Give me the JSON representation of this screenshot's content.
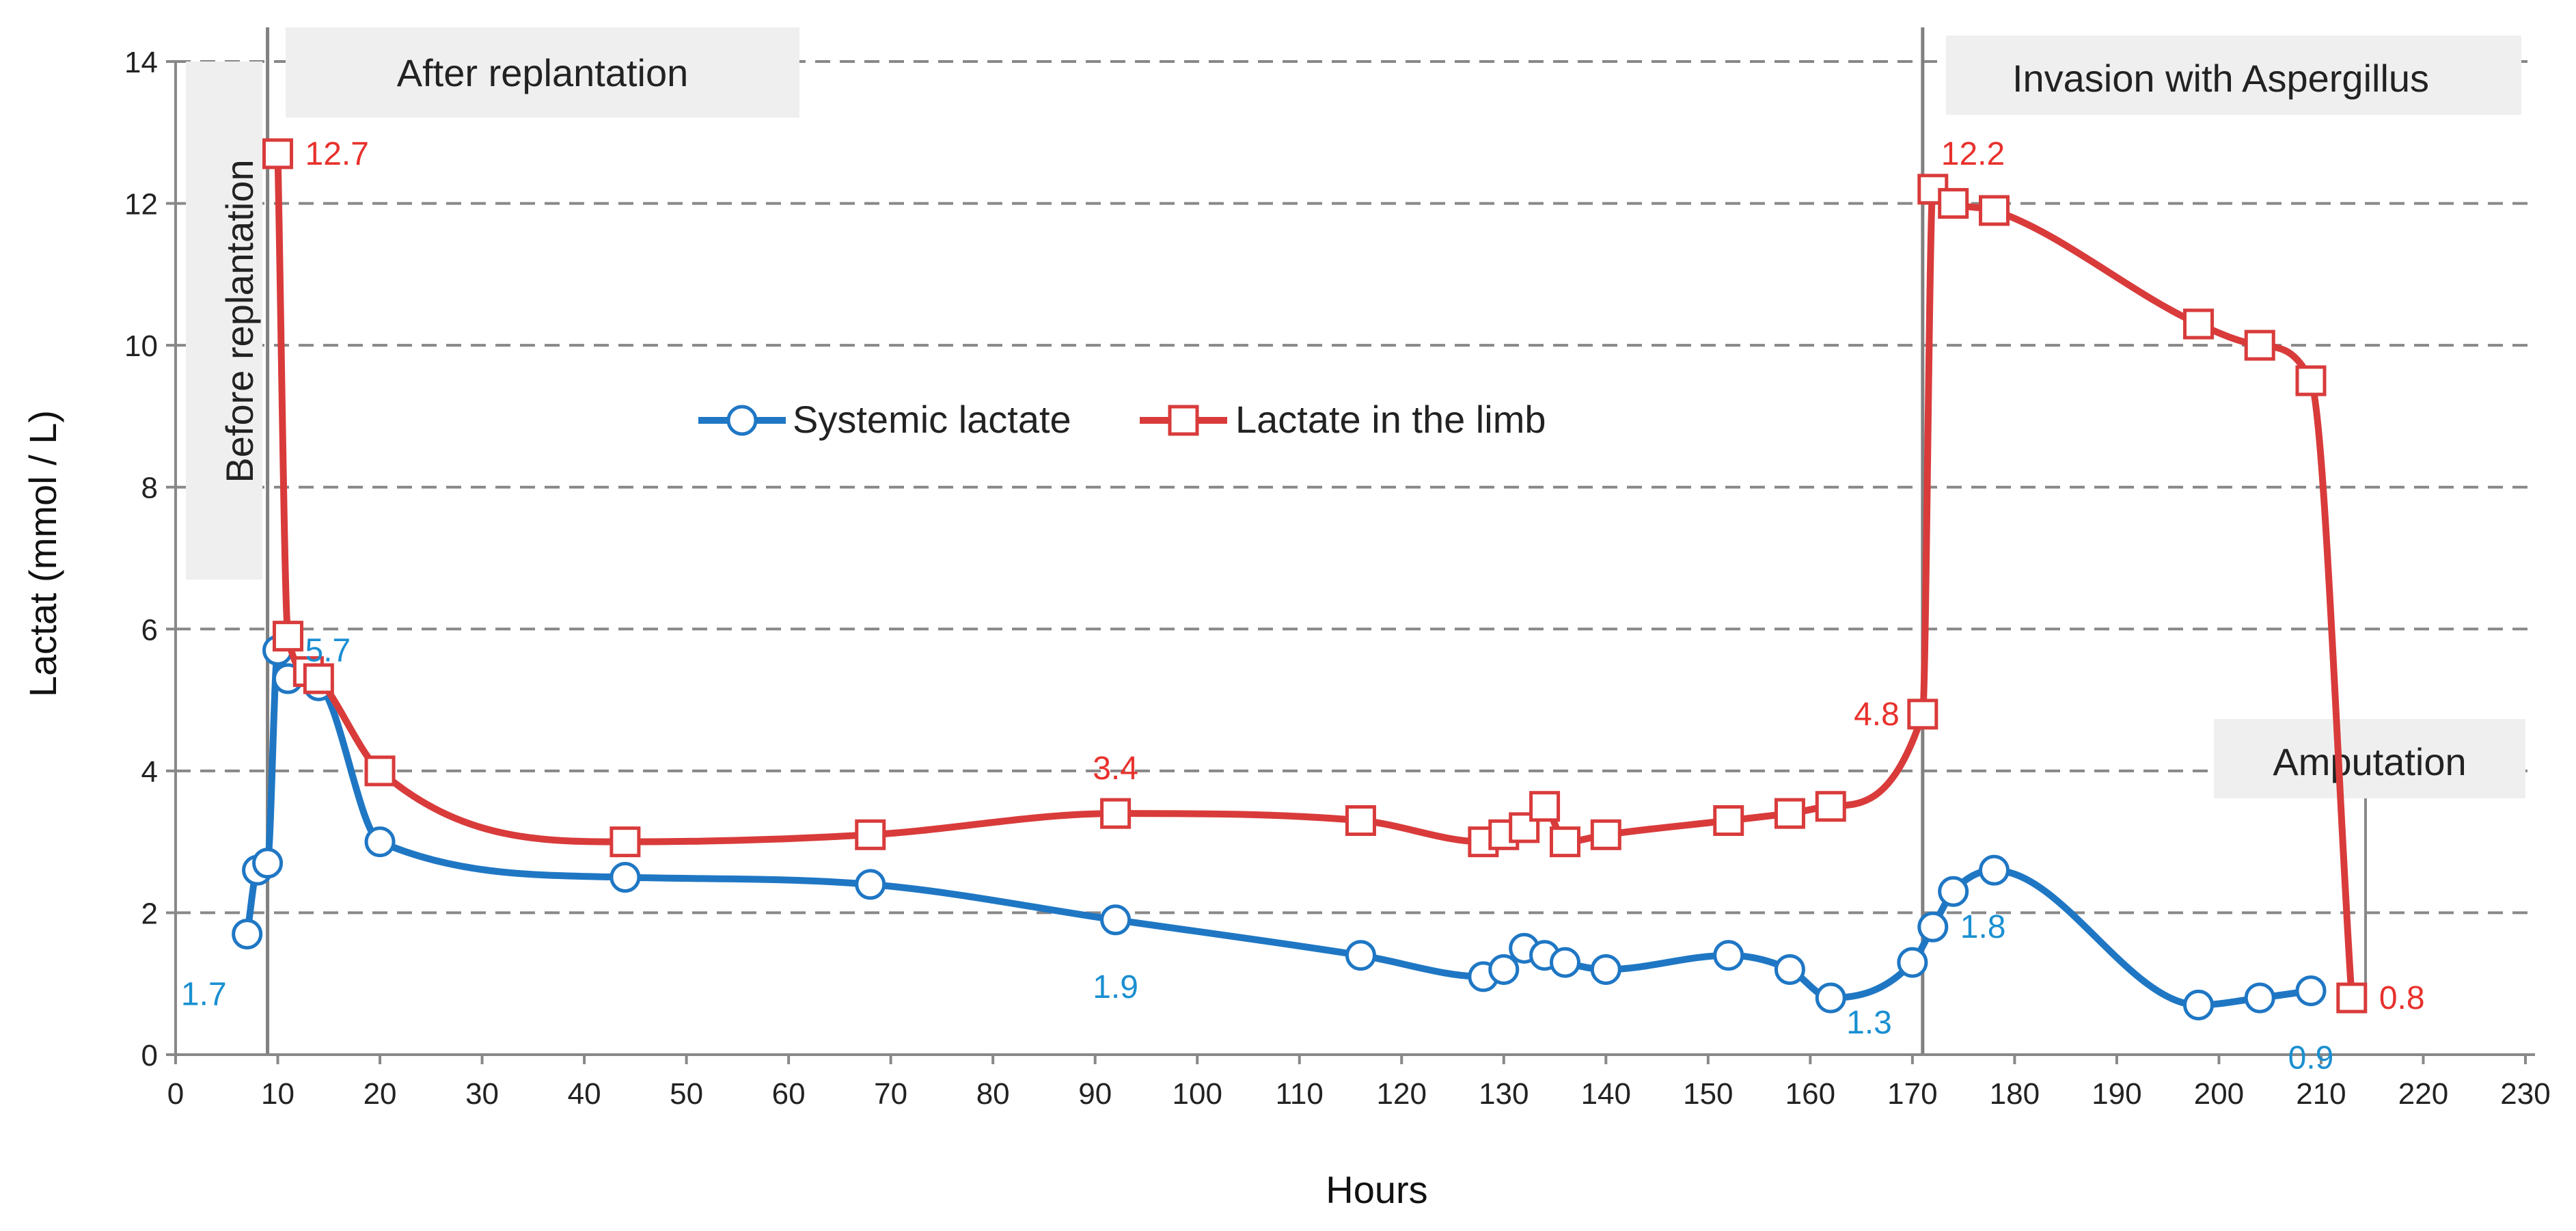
{
  "chart_data": {
    "type": "line",
    "title": "",
    "xlabel": "Hours",
    "ylabel": "Lactat (mmol / L)",
    "xlim": [
      0,
      230
    ],
    "ylim": [
      0,
      14
    ],
    "x_ticks": [
      "0",
      "10",
      "20",
      "30",
      "40",
      "50",
      "60",
      "70",
      "80",
      "90",
      "100",
      "110",
      "120",
      "130",
      "140",
      "150",
      "160",
      "170",
      "180",
      "190",
      "200",
      "210",
      "220",
      "230"
    ],
    "y_ticks": [
      "0",
      "2",
      "4",
      "6",
      "8",
      "10",
      "12",
      "14"
    ],
    "grid": "horizontal dashed",
    "legend_position": "center",
    "series": [
      {
        "name": "Systemic lactate",
        "color": "#1f77c4",
        "label_color": "#1a8fd1",
        "marker": "circle",
        "points": [
          {
            "x": 7,
            "y": 1.7
          },
          {
            "x": 8,
            "y": 2.6
          },
          {
            "x": 9,
            "y": 2.7
          },
          {
            "x": 10,
            "y": 5.7
          },
          {
            "x": 11,
            "y": 5.3
          },
          {
            "x": 14,
            "y": 5.2
          },
          {
            "x": 20,
            "y": 3.0
          },
          {
            "x": 44,
            "y": 2.5
          },
          {
            "x": 68,
            "y": 2.4
          },
          {
            "x": 92,
            "y": 1.9
          },
          {
            "x": 116,
            "y": 1.4
          },
          {
            "x": 128,
            "y": 1.1
          },
          {
            "x": 130,
            "y": 1.2
          },
          {
            "x": 132,
            "y": 1.5
          },
          {
            "x": 134,
            "y": 1.4
          },
          {
            "x": 136,
            "y": 1.3
          },
          {
            "x": 140,
            "y": 1.2
          },
          {
            "x": 152,
            "y": 1.4
          },
          {
            "x": 158,
            "y": 1.2
          },
          {
            "x": 162,
            "y": 0.8
          },
          {
            "x": 170,
            "y": 1.3
          },
          {
            "x": 172,
            "y": 1.8
          },
          {
            "x": 174,
            "y": 2.3
          },
          {
            "x": 178,
            "y": 2.6
          },
          {
            "x": 198,
            "y": 0.7
          },
          {
            "x": 204,
            "y": 0.8
          },
          {
            "x": 209,
            "y": 0.9
          }
        ],
        "data_labels": [
          {
            "x": 7,
            "y": 1.7,
            "text": "1.7",
            "pos": "below-left"
          },
          {
            "x": 10,
            "y": 5.7,
            "text": "5.7",
            "pos": "right"
          },
          {
            "x": 92,
            "y": 1.9,
            "text": "1.9",
            "pos": "below"
          },
          {
            "x": 170,
            "y": 1.3,
            "text": "1.3",
            "pos": "below-left"
          },
          {
            "x": 172,
            "y": 1.8,
            "text": "1.8",
            "pos": "right"
          },
          {
            "x": 209,
            "y": 0.9,
            "text": "0.9",
            "pos": "below"
          }
        ]
      },
      {
        "name": "Lactate in the limb",
        "color": "#d93b3b",
        "label_color": "#e8312c",
        "marker": "square",
        "points": [
          {
            "x": 10,
            "y": 12.7
          },
          {
            "x": 11,
            "y": 5.9
          },
          {
            "x": 13,
            "y": 5.4
          },
          {
            "x": 14,
            "y": 5.3
          },
          {
            "x": 20,
            "y": 4.0
          },
          {
            "x": 44,
            "y": 3.0
          },
          {
            "x": 68,
            "y": 3.1
          },
          {
            "x": 92,
            "y": 3.4
          },
          {
            "x": 116,
            "y": 3.3
          },
          {
            "x": 128,
            "y": 3.0
          },
          {
            "x": 130,
            "y": 3.1
          },
          {
            "x": 132,
            "y": 3.2
          },
          {
            "x": 134,
            "y": 3.5
          },
          {
            "x": 136,
            "y": 3.0
          },
          {
            "x": 140,
            "y": 3.1
          },
          {
            "x": 152,
            "y": 3.3
          },
          {
            "x": 158,
            "y": 3.4
          },
          {
            "x": 162,
            "y": 3.5
          },
          {
            "x": 171,
            "y": 4.8
          },
          {
            "x": 172,
            "y": 12.2
          },
          {
            "x": 174,
            "y": 12.0
          },
          {
            "x": 178,
            "y": 11.9
          },
          {
            "x": 198,
            "y": 10.3
          },
          {
            "x": 204,
            "y": 10.0
          },
          {
            "x": 209,
            "y": 9.5
          },
          {
            "x": 213,
            "y": 0.8
          }
        ],
        "data_labels": [
          {
            "x": 10,
            "y": 12.7,
            "text": "12.7",
            "pos": "right"
          },
          {
            "x": 92,
            "y": 3.4,
            "text": "3.4",
            "pos": "above"
          },
          {
            "x": 171,
            "y": 4.8,
            "text": "4.8",
            "pos": "left"
          },
          {
            "x": 172,
            "y": 12.2,
            "text": "12.2",
            "pos": "above-right"
          },
          {
            "x": 213,
            "y": 0.8,
            "text": "0.8",
            "pos": "right"
          }
        ]
      }
    ],
    "vertical_lines": [
      9,
      171
    ],
    "annotations": [
      {
        "name": "before-replantation-band",
        "text": "Before replantation",
        "orientation": "vertical"
      },
      {
        "name": "after-replantation-band",
        "text": "After replantation",
        "orientation": "horizontal"
      },
      {
        "name": "aspergillus-band",
        "text": "Invasion with Aspergillus",
        "orientation": "horizontal"
      },
      {
        "name": "amputation-band",
        "text": "Amputation",
        "orientation": "horizontal"
      }
    ]
  }
}
